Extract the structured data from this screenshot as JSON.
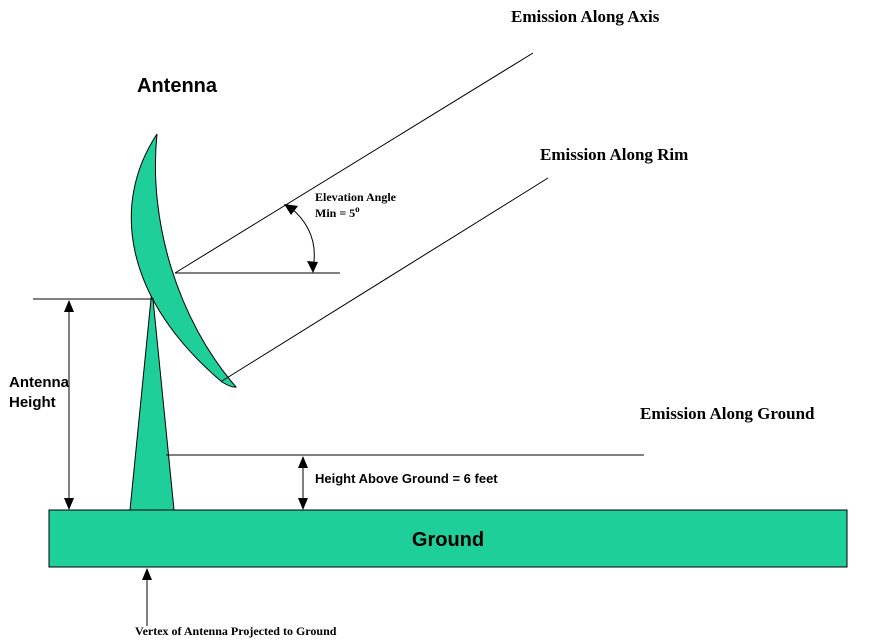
{
  "colors": {
    "shape_fill": "#1ECF9A",
    "stroke": "#000000",
    "background": "#FFFFFF"
  },
  "labels": {
    "emission_axis": "Emission Along Axis",
    "emission_rim": "Emission Along Rim",
    "emission_ground": "Emission Along Ground",
    "antenna": "Antenna",
    "elevation_angle": "Elevation Angle",
    "elevation_min": "Min = 5",
    "elevation_min_sup": "o",
    "antenna_height_line1": "Antenna",
    "antenna_height_line2": "Height",
    "height_above_ground": "Height Above Ground = 6 feet",
    "ground": "Ground",
    "vertex": "Vertex of Antenna Projected to Ground"
  }
}
